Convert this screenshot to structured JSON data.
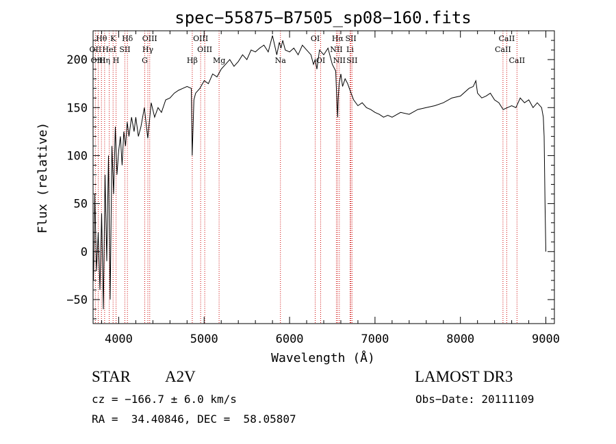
{
  "chart_data": {
    "type": "line",
    "title": "spec−55875−B7505_sp08−160.fits",
    "xlabel": "Wavelength (Å)",
    "ylabel": "Flux (relative)",
    "xlim": [
      3700,
      9100
    ],
    "ylim": [
      -75,
      230
    ],
    "xticks": [
      4000,
      5000,
      6000,
      7000,
      8000,
      9000
    ],
    "yticks": [
      -50,
      0,
      50,
      100,
      150,
      200
    ],
    "ytick_labels": [
      "−50",
      "0",
      "50",
      "100",
      "150",
      "200"
    ],
    "series": [
      {
        "name": "flux",
        "x": [
          3705,
          3720,
          3740,
          3760,
          3780,
          3800,
          3820,
          3840,
          3860,
          3880,
          3900,
          3920,
          3940,
          3960,
          3980,
          4000,
          4020,
          4040,
          4060,
          4080,
          4100,
          4120,
          4150,
          4180,
          4200,
          4230,
          4260,
          4300,
          4340,
          4380,
          4420,
          4460,
          4500,
          4550,
          4600,
          4650,
          4700,
          4750,
          4800,
          4850,
          4860,
          4880,
          4900,
          4950,
          5000,
          5050,
          5100,
          5150,
          5200,
          5250,
          5300,
          5350,
          5400,
          5450,
          5500,
          5550,
          5600,
          5650,
          5700,
          5750,
          5800,
          5850,
          5880,
          5900,
          5920,
          5950,
          6000,
          6050,
          6100,
          6150,
          6200,
          6250,
          6280,
          6300,
          6320,
          6350,
          6400,
          6450,
          6500,
          6540,
          6555,
          6563,
          6570,
          6580,
          6600,
          6620,
          6650,
          6680,
          6700,
          6720,
          6750,
          6800,
          6850,
          6900,
          6950,
          7000,
          7050,
          7100,
          7150,
          7200,
          7300,
          7400,
          7500,
          7600,
          7700,
          7800,
          7900,
          8000,
          8100,
          8150,
          8180,
          8200,
          8250,
          8300,
          8350,
          8400,
          8450,
          8500,
          8550,
          8600,
          8650,
          8700,
          8750,
          8800,
          8850,
          8900,
          8950,
          8970,
          8980,
          8990,
          9000
        ],
        "values": [
          -30,
          60,
          -20,
          20,
          -40,
          40,
          -60,
          80,
          -10,
          100,
          -50,
          110,
          60,
          130,
          80,
          105,
          120,
          90,
          125,
          110,
          135,
          120,
          140,
          125,
          140,
          120,
          130,
          150,
          118,
          155,
          140,
          150,
          145,
          158,
          160,
          165,
          168,
          170,
          172,
          170,
          100,
          158,
          165,
          170,
          178,
          175,
          185,
          182,
          190,
          195,
          200,
          193,
          198,
          205,
          200,
          210,
          208,
          212,
          215,
          208,
          225,
          205,
          218,
          212,
          220,
          210,
          208,
          212,
          205,
          215,
          210,
          205,
          195,
          200,
          190,
          210,
          205,
          212,
          195,
          188,
          155,
          140,
          160,
          175,
          185,
          172,
          180,
          175,
          170,
          165,
          158,
          152,
          155,
          150,
          148,
          145,
          143,
          140,
          142,
          140,
          145,
          143,
          148,
          150,
          152,
          155,
          160,
          162,
          170,
          172,
          178,
          165,
          160,
          162,
          165,
          158,
          155,
          148,
          150,
          152,
          150,
          160,
          155,
          158,
          150,
          155,
          150,
          140,
          120,
          50,
          0
        ]
      }
    ],
    "emission_lines": [
      {
        "name": "Hθ",
        "wavelength": 3798,
        "row": 0
      },
      {
        "name": "K",
        "wavelength": 3934,
        "row": 0
      },
      {
        "name": "Hδ",
        "wavelength": 4102,
        "row": 0
      },
      {
        "name": "OIII",
        "wavelength": 4363,
        "row": 0
      },
      {
        "name": "OIII",
        "wavelength": 4959,
        "row": 0
      },
      {
        "name": "OI",
        "wavelength": 6300,
        "row": 0
      },
      {
        "name": "Hα",
        "wavelength": 6563,
        "row": 0
      },
      {
        "name": "SII",
        "wavelength": 6717,
        "row": 0
      },
      {
        "name": "CaII",
        "wavelength": 8542,
        "row": 0
      },
      {
        "name": "OII",
        "wavelength": 3727,
        "row": 1
      },
      {
        "name": "HeI",
        "wavelength": 3889,
        "row": 1
      },
      {
        "name": "SII",
        "wavelength": 4072,
        "row": 1
      },
      {
        "name": "Hγ",
        "wavelength": 4341,
        "row": 1
      },
      {
        "name": "OIII",
        "wavelength": 5007,
        "row": 1
      },
      {
        "name": "NII",
        "wavelength": 6548,
        "row": 1
      },
      {
        "name": "Li",
        "wavelength": 6708,
        "row": 1
      },
      {
        "name": "CaII",
        "wavelength": 8498,
        "row": 1
      },
      {
        "name": "OIII",
        "wavelength": 3760,
        "row": 2
      },
      {
        "name": "Hη",
        "wavelength": 3835,
        "row": 2
      },
      {
        "name": "H",
        "wavelength": 3969,
        "row": 2
      },
      {
        "name": "G",
        "wavelength": 4305,
        "row": 2
      },
      {
        "name": "Hβ",
        "wavelength": 4861,
        "row": 2
      },
      {
        "name": "Mg",
        "wavelength": 5175,
        "row": 2
      },
      {
        "name": "Na",
        "wavelength": 5893,
        "row": 2
      },
      {
        "name": "OI",
        "wavelength": 6364,
        "row": 2
      },
      {
        "name": "NII",
        "wavelength": 6583,
        "row": 2
      },
      {
        "name": "SII",
        "wavelength": 6731,
        "row": 2
      },
      {
        "name": "CaII",
        "wavelength": 8662,
        "row": 2
      }
    ],
    "line_color": "#000000",
    "marker_color": "#cc0000"
  },
  "footer": {
    "object_class": "STAR",
    "subclass": "A2V",
    "survey": "LAMOST DR3",
    "cz": "cz = −166.7 ± 6.0 km/s",
    "obs_date": "Obs−Date: 20111109",
    "coords": "RA =  34.40846, DEC =  58.05807"
  }
}
